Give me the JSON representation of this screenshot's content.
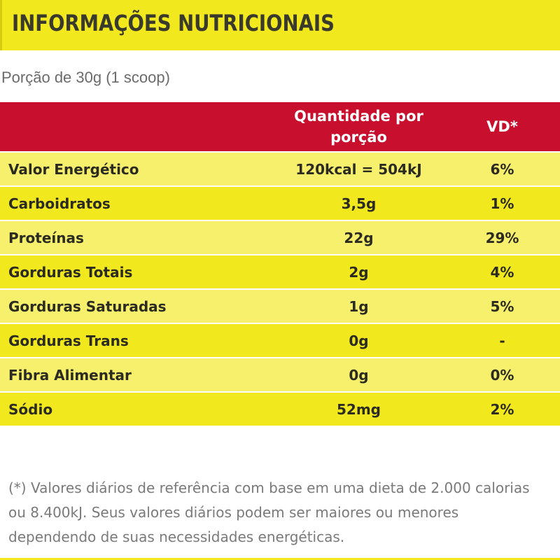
{
  "header": {
    "title": "INFORMAÇÕES NUTRICIONAIS"
  },
  "portion": "Porção de 30g (1 scoop)",
  "table": {
    "columns": [
      "",
      "Quantidade por porção",
      "VD*"
    ],
    "rows": [
      {
        "name": "Valor Energético",
        "qty": "120kcal = 504kJ",
        "vd": "6%"
      },
      {
        "name": "Carboidratos",
        "qty": "3,5g",
        "vd": "1%"
      },
      {
        "name": "Proteínas",
        "qty": "22g",
        "vd": "29%"
      },
      {
        "name": "Gorduras Totais",
        "qty": "2g",
        "vd": "4%"
      },
      {
        "name": "Gorduras Saturadas",
        "qty": "1g",
        "vd": "5%"
      },
      {
        "name": "Gorduras Trans",
        "qty": "0g",
        "vd": "-"
      },
      {
        "name": "Fibra Alimentar",
        "qty": "0g",
        "vd": "0%"
      },
      {
        "name": "Sódio",
        "qty": "52mg",
        "vd": "2%"
      }
    ]
  },
  "footnote": "(*) Valores diários de referência com base em uma dieta de 2.000 calorias ou 8.400kJ. Seus valores diários podem ser maiores ou menores dependendo de suas necessidades energéticas.",
  "colors": {
    "header_yellow": "#f2e81e",
    "light_yellow": "#f7f06c",
    "table_header_red": "#c8102e"
  }
}
